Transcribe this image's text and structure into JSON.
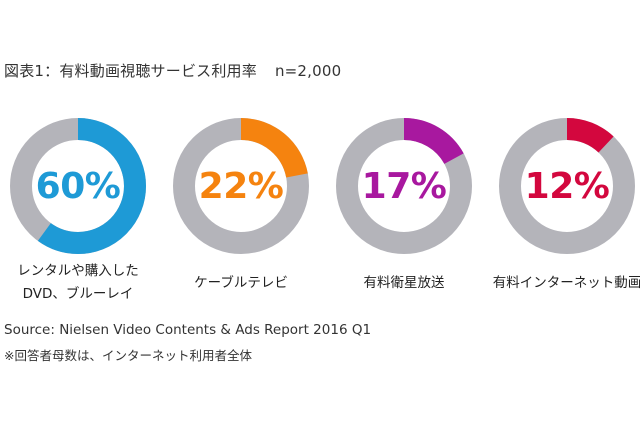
{
  "title": {
    "text": "図表1：有料動画視聴サービス利用率",
    "sample": "n=2,000"
  },
  "colors": {
    "track": "#b4b4ba",
    "blue": "#1e9ad6",
    "orange": "#f5830f",
    "purple": "#a8189f",
    "red": "#d3073e"
  },
  "charts": [
    {
      "value_label": "60%",
      "label_line1": "レンタルや購入した",
      "label_line2": "DVD、ブルーレイ"
    },
    {
      "value_label": "22%",
      "label_line1": "ケーブルテレビ"
    },
    {
      "value_label": "17%",
      "label_line1": "有料衛星放送"
    },
    {
      "value_label": "12%",
      "label_line1": "有料インターネット動画"
    }
  ],
  "footer": {
    "source": "Source: Nielsen Video Contents & Ads Report 2016 Q1",
    "note": "※回答者母数は、インターネット利用者全体"
  },
  "chart_data": {
    "type": "pie",
    "variant": "donut",
    "title": "図表1：有料動画視聴サービス利用率 n=2,000",
    "categories": [
      "レンタルや購入したDVD、ブルーレイ",
      "ケーブルテレビ",
      "有料衛星放送",
      "有料インターネット動画"
    ],
    "values": [
      60,
      22,
      17,
      12
    ],
    "unit": "%",
    "series_colors": [
      "#1e9ad6",
      "#f5830f",
      "#a8189f",
      "#d3073e"
    ],
    "remainder_color": "#b4b4ba",
    "sample_size": 2000,
    "source": "Source: Nielsen Video Contents & Ads Report 2016 Q1",
    "note": "※回答者母数は、インターネット利用者全体",
    "legend": "none"
  }
}
